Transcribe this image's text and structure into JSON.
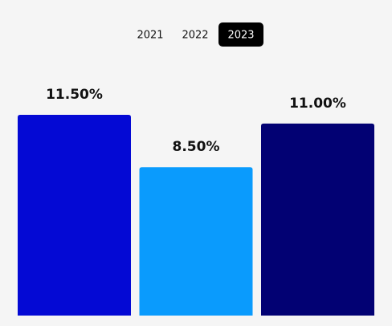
{
  "tabs": {
    "labels": [
      "2021",
      "2022",
      "2023"
    ],
    "active": 2
  },
  "chart_data": {
    "type": "bar",
    "categories": [
      null,
      null,
      null
    ],
    "values": [
      11.5,
      8.5,
      11.0
    ],
    "value_labels": [
      "11.50%",
      "8.50%",
      "11.00%"
    ],
    "colors": [
      "#0409d4",
      "#0a9bfd",
      "#020173"
    ]
  }
}
